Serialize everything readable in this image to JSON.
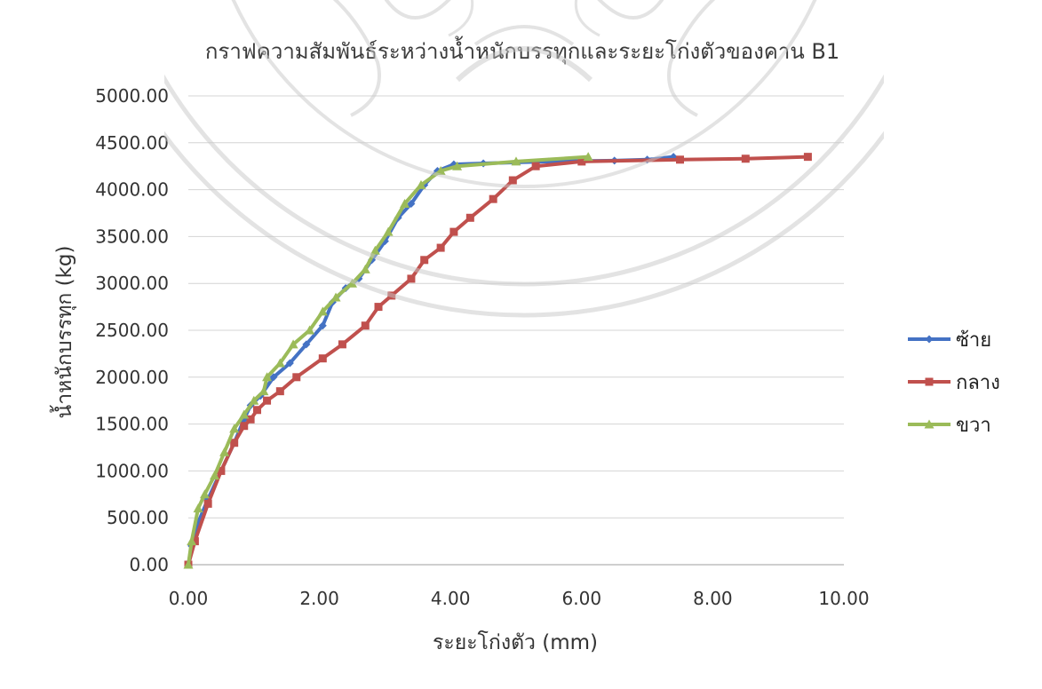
{
  "chart_data": {
    "type": "line",
    "title": "กราฟความสัมพันธ์ระหว่างน้ำหนักบรรทุกและระยะโก่งตัวของคาน B1",
    "xlabel": "ระยะโก่งตัว (mm)",
    "ylabel": "น้ำหนักบรรทุก (kg)",
    "xlim": [
      0,
      10
    ],
    "ylim": [
      0,
      5000
    ],
    "x_ticks": [
      "0.00",
      "2.00",
      "4.00",
      "6.00",
      "8.00",
      "10.00"
    ],
    "y_ticks": [
      "0.00",
      "500.00",
      "1000.00",
      "1500.00",
      "2000.00",
      "2500.00",
      "3000.00",
      "3500.00",
      "4000.00",
      "4500.00",
      "5000.00"
    ],
    "grid": "horizontal",
    "legend_position": "right",
    "series": [
      {
        "name": "ซ้าย",
        "color": "#4472C4",
        "marker": "diamond",
        "points": [
          [
            0,
            0
          ],
          [
            0.05,
            200
          ],
          [
            0.15,
            450
          ],
          [
            0.3,
            700
          ],
          [
            0.5,
            1000
          ],
          [
            0.7,
            1300
          ],
          [
            0.85,
            1550
          ],
          [
            0.95,
            1700
          ],
          [
            1.1,
            1800
          ],
          [
            1.3,
            2000
          ],
          [
            1.55,
            2150
          ],
          [
            1.8,
            2350
          ],
          [
            2.05,
            2550
          ],
          [
            2.2,
            2800
          ],
          [
            2.4,
            2950
          ],
          [
            2.6,
            3050
          ],
          [
            2.8,
            3250
          ],
          [
            3.0,
            3450
          ],
          [
            3.2,
            3700
          ],
          [
            3.4,
            3850
          ],
          [
            3.6,
            4050
          ],
          [
            3.8,
            4200
          ],
          [
            4.05,
            4270
          ],
          [
            4.5,
            4280
          ],
          [
            5.5,
            4300
          ],
          [
            6.5,
            4310
          ],
          [
            7.0,
            4320
          ],
          [
            7.4,
            4350
          ]
        ]
      },
      {
        "name": "กลาง",
        "color": "#C0504D",
        "marker": "square",
        "points": [
          [
            0,
            0
          ],
          [
            0.1,
            250
          ],
          [
            0.3,
            650
          ],
          [
            0.5,
            1000
          ],
          [
            0.7,
            1300
          ],
          [
            0.85,
            1480
          ],
          [
            0.95,
            1550
          ],
          [
            1.05,
            1650
          ],
          [
            1.2,
            1750
          ],
          [
            1.4,
            1850
          ],
          [
            1.65,
            2000
          ],
          [
            2.05,
            2200
          ],
          [
            2.35,
            2350
          ],
          [
            2.7,
            2550
          ],
          [
            2.9,
            2750
          ],
          [
            3.1,
            2870
          ],
          [
            3.4,
            3050
          ],
          [
            3.6,
            3250
          ],
          [
            3.85,
            3380
          ],
          [
            4.05,
            3550
          ],
          [
            4.3,
            3700
          ],
          [
            4.65,
            3900
          ],
          [
            4.95,
            4100
          ],
          [
            5.3,
            4250
          ],
          [
            6.0,
            4300
          ],
          [
            7.5,
            4320
          ],
          [
            8.5,
            4330
          ],
          [
            9.45,
            4350
          ]
        ]
      },
      {
        "name": "ขวา",
        "color": "#9BBB59",
        "marker": "triangle",
        "points": [
          [
            0,
            0
          ],
          [
            0.05,
            250
          ],
          [
            0.15,
            600
          ],
          [
            0.25,
            750
          ],
          [
            0.4,
            950
          ],
          [
            0.55,
            1200
          ],
          [
            0.7,
            1450
          ],
          [
            0.85,
            1600
          ],
          [
            1.0,
            1750
          ],
          [
            1.15,
            1850
          ],
          [
            1.2,
            2000
          ],
          [
            1.4,
            2150
          ],
          [
            1.6,
            2350
          ],
          [
            1.85,
            2500
          ],
          [
            2.05,
            2700
          ],
          [
            2.25,
            2850
          ],
          [
            2.5,
            3000
          ],
          [
            2.7,
            3150
          ],
          [
            2.85,
            3350
          ],
          [
            3.05,
            3550
          ],
          [
            3.3,
            3850
          ],
          [
            3.55,
            4050
          ],
          [
            3.85,
            4200
          ],
          [
            4.1,
            4250
          ],
          [
            5.0,
            4300
          ],
          [
            6.1,
            4350
          ]
        ]
      }
    ]
  }
}
